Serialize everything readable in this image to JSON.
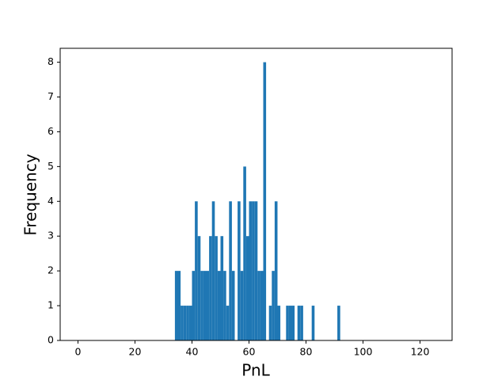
{
  "chart_data": {
    "type": "histogram",
    "xlabel": "PnL",
    "ylabel": "Frequency",
    "color": "#1f77b4",
    "bins": [
      0,
      1,
      2,
      3,
      4,
      5,
      6,
      7,
      8,
      9,
      10,
      11,
      12,
      13,
      14,
      15,
      16,
      17,
      18,
      19,
      20,
      21,
      22,
      23,
      24,
      25,
      26,
      27,
      28,
      29,
      30,
      31,
      32,
      33,
      34,
      35,
      36,
      37,
      38,
      39,
      40,
      41,
      42,
      43,
      44,
      45,
      46,
      47,
      48,
      49,
      50,
      51,
      52,
      53,
      54,
      55,
      56,
      57,
      58,
      59,
      60,
      61,
      62,
      63,
      64,
      65,
      66,
      67,
      68,
      69,
      70,
      71,
      72,
      73,
      74,
      75,
      76,
      77,
      78,
      79,
      80,
      81,
      82,
      83,
      84,
      85,
      86,
      87,
      88,
      89,
      90,
      91,
      92,
      93,
      94,
      95,
      96,
      97,
      98,
      99,
      100,
      101,
      102,
      103,
      104,
      105,
      106,
      107,
      108,
      109,
      110,
      111,
      112,
      113,
      114,
      115,
      116,
      117,
      118,
      119,
      120,
      121,
      122,
      123,
      124,
      125
    ],
    "counts": [
      0,
      0,
      0,
      0,
      0,
      0,
      0,
      0,
      0,
      0,
      0,
      0,
      0,
      0,
      0,
      0,
      0,
      0,
      0,
      0,
      0,
      0,
      0,
      0,
      0,
      0,
      0,
      0,
      0,
      0,
      0,
      0,
      0,
      0,
      2,
      2,
      1,
      1,
      1,
      1,
      2,
      4,
      3,
      2,
      2,
      2,
      3,
      4,
      3,
      2,
      3,
      2,
      1,
      4,
      2,
      0,
      4,
      2,
      5,
      3,
      4,
      4,
      4,
      2,
      2,
      8,
      0,
      1,
      2,
      4,
      1,
      0,
      0,
      1,
      1,
      1,
      0,
      1,
      1,
      0,
      0,
      0,
      1,
      0,
      0,
      0,
      0,
      0,
      0,
      0,
      0,
      1,
      0,
      0,
      0,
      0,
      0,
      0,
      0,
      0,
      0,
      0,
      0,
      0,
      0,
      0,
      0,
      0,
      0,
      0,
      0,
      0,
      0,
      0,
      0,
      0,
      0,
      0,
      0,
      0,
      0,
      0,
      0,
      0,
      0
    ],
    "xlim": [
      -6.25,
      131.25
    ],
    "xticks": [
      0,
      20,
      40,
      60,
      80,
      100,
      120
    ],
    "ylim": [
      0,
      8.4
    ],
    "yticks": [
      0,
      1,
      2,
      3,
      4,
      5,
      6,
      7,
      8
    ]
  }
}
